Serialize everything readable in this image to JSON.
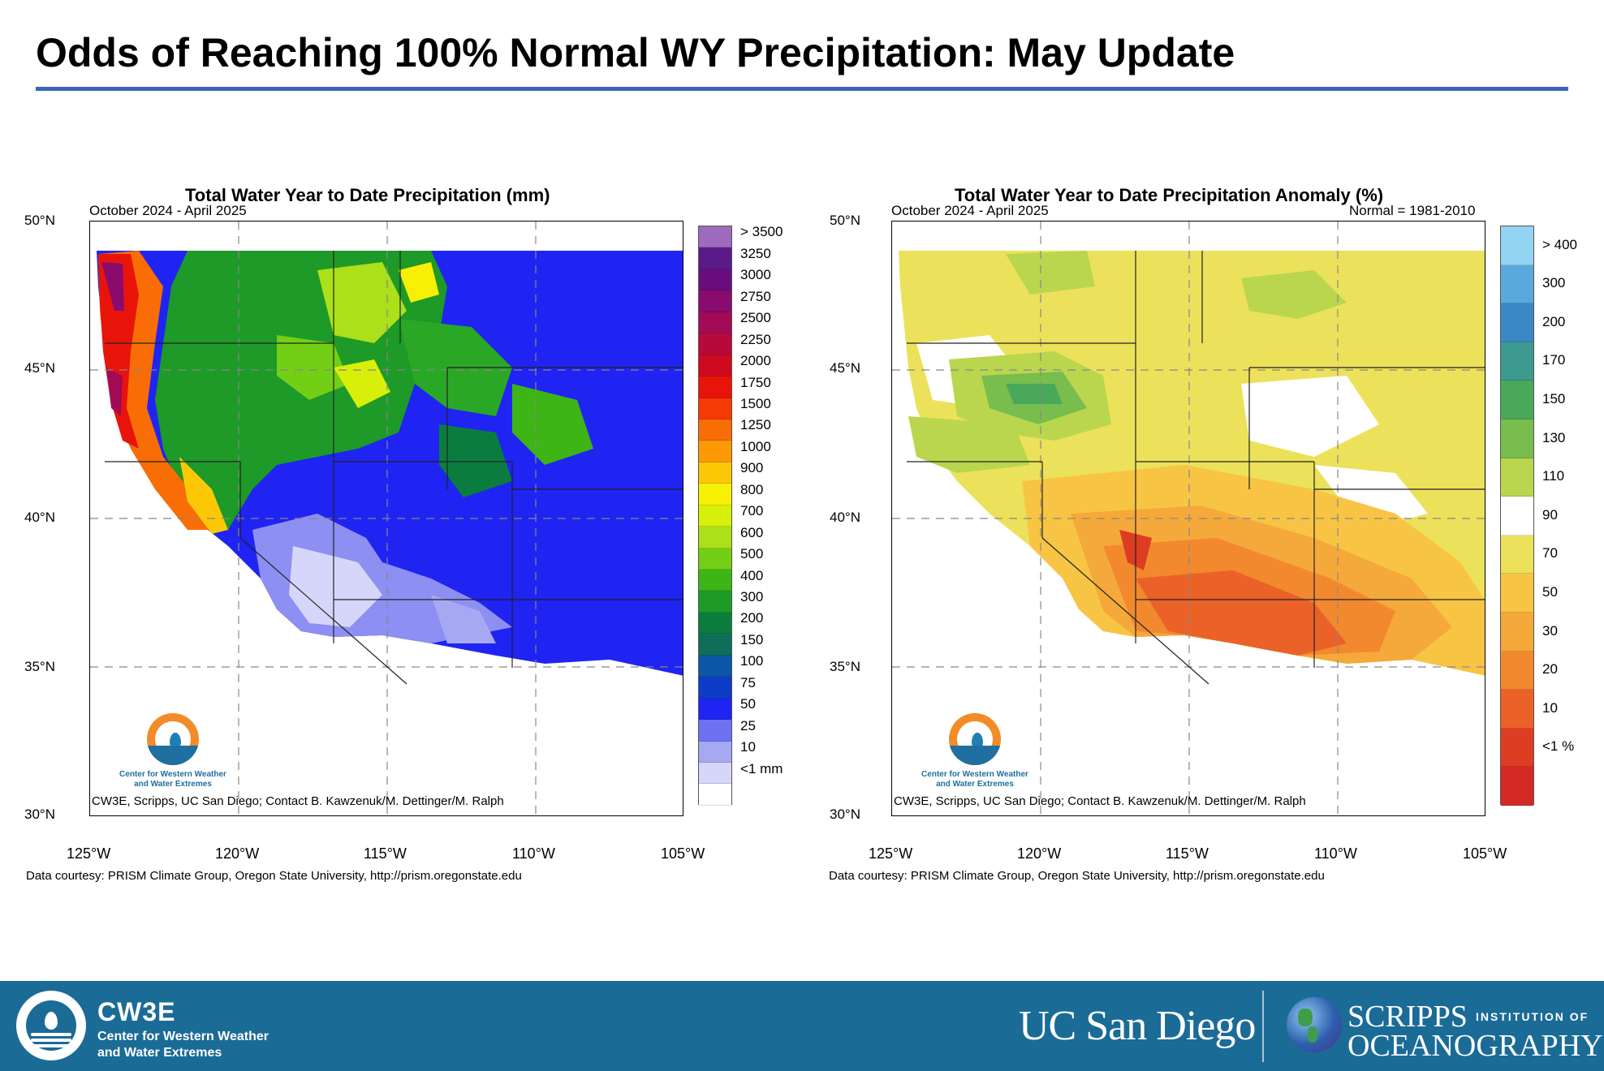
{
  "slide": {
    "title": "Odds of Reaching 100% Normal WY Precipitation: May Update"
  },
  "left_map": {
    "title": "Total Water Year to Date Precipitation (mm)",
    "subtitle": "October 2024 - April 2025",
    "in_map_credit": "CW3E, Scripps, UC San Diego; Contact B. Kawzenuk/M. Dettinger/M. Ralph",
    "credit": "Data courtesy: PRISM Climate Group, Oregon State University, http://prism.oregonstate.edu",
    "logo_text_line1": "Center for Western Weather",
    "logo_text_line2": "and Water Extremes",
    "lat_labels": [
      "50°N",
      "45°N",
      "40°N",
      "35°N",
      "30°N"
    ],
    "lon_labels": [
      "125°W",
      "120°W",
      "115°W",
      "110°W",
      "105°W"
    ],
    "colorbar": {
      "labels": [
        "> 3500",
        "3250",
        "3000",
        "2750",
        "2500",
        "2250",
        "2000",
        "1750",
        "1500",
        "1250",
        "1000",
        "900",
        "800",
        "700",
        "600",
        "500",
        "400",
        "300",
        "200",
        "150",
        "100",
        "75",
        "50",
        "25",
        "10",
        "<1 mm"
      ],
      "colors": [
        "#9e6bbf",
        "#5a1a8a",
        "#6a0d7e",
        "#8a0b6e",
        "#a30a55",
        "#b80a3a",
        "#cf0a20",
        "#e8140a",
        "#f53a05",
        "#f86d05",
        "#fc9a05",
        "#fcc805",
        "#f7f005",
        "#d8ef0a",
        "#abe01a",
        "#72cf15",
        "#3cb515",
        "#1d9a28",
        "#0a7d3e",
        "#0f6e5a",
        "#0b56a6",
        "#0d3cc8",
        "#1f24f2",
        "#6d72f2",
        "#a6a8f2",
        "#d6d6fb",
        "#ffffff"
      ]
    }
  },
  "right_map": {
    "title": "Total Water Year to Date Precipitation Anomaly (%)",
    "subtitle": "October 2024 - April 2025",
    "normal_note": "Normal = 1981-2010",
    "in_map_credit": "CW3E, Scripps, UC San Diego; Contact B. Kawzenuk/M. Dettinger/M. Ralph",
    "credit": "Data courtesy: PRISM Climate Group, Oregon State University, http://prism.oregonstate.edu",
    "logo_text_line1": "Center for Western Weather",
    "logo_text_line2": "and Water Extremes",
    "lat_labels": [
      "50°N",
      "45°N",
      "40°N",
      "35°N",
      "30°N"
    ],
    "lon_labels": [
      "125°W",
      "120°W",
      "115°W",
      "110°W",
      "105°W"
    ],
    "colorbar": {
      "labels": [
        "> 400",
        "300",
        "200",
        "170",
        "150",
        "130",
        "110",
        "90",
        "70",
        "50",
        "30",
        "20",
        "10",
        "<1 %"
      ],
      "colors": [
        "#92d4f2",
        "#5aa9dc",
        "#3a88c4",
        "#3d9a8e",
        "#4aa85a",
        "#78bd4d",
        "#b9d64e",
        "#ffffff",
        "#ece15a",
        "#f7c543",
        "#f5a93a",
        "#f2892f",
        "#ea6227",
        "#dd3d22",
        "#d42a26"
      ]
    }
  },
  "footer": {
    "acronym": "CW3E",
    "line1": "Center for Western Weather",
    "line2": "and Water Extremes",
    "ucsd": "UC San Diego",
    "scripps_top": "SCRIPPS",
    "scripps_institution": "INSTITUTION OF",
    "scripps_bottom": "OCEANOGRAPHY"
  }
}
